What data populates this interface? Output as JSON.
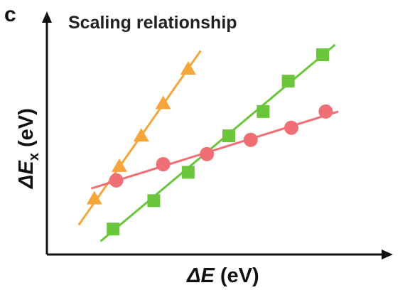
{
  "panel_letter": "c",
  "chart_data": {
    "type": "scatter",
    "title": "Scaling relationship",
    "xlabel": {
      "symbol": "ΔE",
      "unit": " (eV)"
    },
    "ylabel": {
      "symbol": "ΔE",
      "subscript": "x",
      "unit": " (eV)"
    },
    "xlim": [
      0,
      100
    ],
    "ylim": [
      0,
      100
    ],
    "ticks": false,
    "grid": false,
    "series": [
      {
        "marker": "triangle",
        "color": "#f5a53a",
        "x": [
          12,
          20,
          27,
          34,
          42
        ],
        "y": [
          23,
          39,
          54,
          70,
          87
        ],
        "fit": [
          [
            7,
            10
          ],
          [
            46,
            96
          ]
        ]
      },
      {
        "marker": "square",
        "color": "#6cc63c",
        "x": [
          18,
          31,
          42,
          55,
          66,
          74,
          85
        ],
        "y": [
          8,
          22,
          36,
          54,
          66,
          81,
          94
        ],
        "fit": [
          [
            14,
            2
          ],
          [
            89,
            99
          ]
        ]
      },
      {
        "marker": "circle",
        "color": "#ef6f74",
        "x": [
          19,
          34,
          48,
          62,
          75,
          86
        ],
        "y": [
          32,
          40,
          45,
          52,
          58,
          66
        ],
        "fit": [
          [
            11,
            28
          ],
          [
            90,
            66
          ]
        ]
      }
    ]
  }
}
